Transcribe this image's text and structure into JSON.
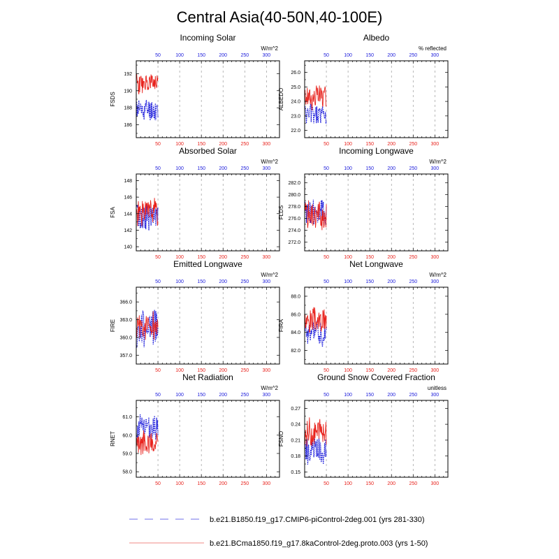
{
  "title": "Central Asia(40-50N,40-100E)",
  "colors": {
    "series1": "#1a1adb",
    "series2": "#e8231d",
    "frame": "#000000",
    "grid": "#9a9a9a",
    "top_ticks": "#1a1adb",
    "bottom_ticks": "#e8231d"
  },
  "legend": {
    "entries": [
      {
        "label": "b.e21.B1850.f19_g17.CMIP6-piControl-2deg.001 (yrs 281-330)",
        "color": "#6f6fe8",
        "style": "dashed"
      },
      {
        "label": "b.e21.BCma1850.f19_g17.8kaControl-2deg.proto.003 (yrs 1-50)",
        "color": "#f08a85",
        "style": "solid"
      }
    ]
  },
  "chart_data": [
    {
      "type": "line",
      "title": "Incoming Solar",
      "ylabel": "FSDS",
      "units": "W/m^2",
      "top_ticks": [
        "50",
        "100",
        "150",
        "200",
        "250",
        "300"
      ],
      "bottom_ticks": [
        "50",
        "100",
        "150",
        "200",
        "250",
        "300"
      ],
      "xlim": [
        0,
        330
      ],
      "ylim": [
        184.5,
        193.5
      ],
      "yticks": [
        186,
        188,
        190,
        192
      ],
      "ytick_labels": [
        "186",
        "188",
        "190",
        "192"
      ],
      "series": [
        {
          "name": "b.e21.B1850.f19_g17.CMIP6-piControl-2deg.001 (yrs 281-330)",
          "center": 187.8,
          "amp": 1.6,
          "seed": 11
        },
        {
          "name": "b.e21.BCma1850.f19_g17.8kaControl-2deg.proto.003 (yrs 1-50)",
          "center": 190.8,
          "amp": 1.4,
          "seed": 23
        }
      ]
    },
    {
      "type": "line",
      "title": "Albedo",
      "ylabel": "ALBEDO",
      "units": "% reflected",
      "top_ticks": [
        "50",
        "100",
        "150",
        "200",
        "250",
        "300"
      ],
      "bottom_ticks": [
        "50",
        "100",
        "150",
        "200",
        "250",
        "300"
      ],
      "xlim": [
        0,
        330
      ],
      "ylim": [
        21.5,
        26.8
      ],
      "yticks": [
        22.0,
        23.0,
        24.0,
        25.0,
        26.0
      ],
      "ytick_labels": [
        "22.0",
        "23.0",
        "24.0",
        "25.0",
        "26.0"
      ],
      "series": [
        {
          "name": "b.e21.B1850.f19_g17.CMIP6-piControl-2deg.001 (yrs 281-330)",
          "center": 23.1,
          "amp": 0.9,
          "seed": 5
        },
        {
          "name": "b.e21.BCma1850.f19_g17.8kaControl-2deg.proto.003 (yrs 1-50)",
          "center": 24.3,
          "amp": 1.0,
          "seed": 17
        }
      ]
    },
    {
      "type": "line",
      "title": "Absorbed Solar",
      "ylabel": "FSA",
      "units": "W/m^2",
      "top_ticks": [
        "50",
        "100",
        "150",
        "200",
        "250",
        "300"
      ],
      "bottom_ticks": [
        "50",
        "100",
        "150",
        "200",
        "250",
        "300"
      ],
      "xlim": [
        0,
        330
      ],
      "ylim": [
        139.5,
        148.8
      ],
      "yticks": [
        140,
        142,
        144,
        146,
        148
      ],
      "ytick_labels": [
        "140",
        "142",
        "144",
        "146",
        "148"
      ],
      "series": [
        {
          "name": "b.e21.B1850.f19_g17.CMIP6-piControl-2deg.001 (yrs 281-330)",
          "center": 143.6,
          "amp": 1.9,
          "seed": 29
        },
        {
          "name": "b.e21.BCma1850.f19_g17.8kaControl-2deg.proto.003 (yrs 1-50)",
          "center": 144.2,
          "amp": 2.0,
          "seed": 31
        }
      ]
    },
    {
      "type": "line",
      "title": "Incoming Longwave",
      "ylabel": "FLDS",
      "units": "W/m^2",
      "top_ticks": [
        "50",
        "100",
        "150",
        "200",
        "250",
        "300"
      ],
      "bottom_ticks": [
        "50",
        "100",
        "150",
        "200",
        "250",
        "300"
      ],
      "xlim": [
        0,
        330
      ],
      "ylim": [
        270.5,
        283.5
      ],
      "yticks": [
        272.0,
        274.0,
        276.0,
        278.0,
        280.0,
        282.0
      ],
      "ytick_labels": [
        "272.0",
        "274.0",
        "276.0",
        "278.0",
        "280.0",
        "282.0"
      ],
      "series": [
        {
          "name": "b.e21.B1850.f19_g17.CMIP6-piControl-2deg.001 (yrs 281-330)",
          "center": 277.0,
          "amp": 3.0,
          "seed": 41
        },
        {
          "name": "b.e21.BCma1850.f19_g17.8kaControl-2deg.proto.003 (yrs 1-50)",
          "center": 276.5,
          "amp": 2.8,
          "seed": 43
        }
      ]
    },
    {
      "type": "line",
      "title": "Emitted Longwave",
      "ylabel": "FIRE",
      "units": "W/m^2",
      "top_ticks": [
        "50",
        "100",
        "150",
        "200",
        "250",
        "300"
      ],
      "bottom_ticks": [
        "50",
        "100",
        "150",
        "200",
        "250",
        "300"
      ],
      "xlim": [
        0,
        330
      ],
      "ylim": [
        355.5,
        368.5
      ],
      "yticks": [
        357.0,
        360.0,
        363.0,
        366.0
      ],
      "ytick_labels": [
        "357.0",
        "360.0",
        "363.0",
        "366.0"
      ],
      "series": [
        {
          "name": "b.e21.B1850.f19_g17.CMIP6-piControl-2deg.001 (yrs 281-330)",
          "center": 361.5,
          "amp": 3.8,
          "seed": 53
        },
        {
          "name": "b.e21.BCma1850.f19_g17.8kaControl-2deg.proto.003 (yrs 1-50)",
          "center": 362.0,
          "amp": 2.8,
          "seed": 59
        }
      ]
    },
    {
      "type": "line",
      "title": "Net Longwave",
      "ylabel": "FIRA",
      "units": "W/m^2",
      "top_ticks": [
        "50",
        "100",
        "150",
        "200",
        "250",
        "300"
      ],
      "bottom_ticks": [
        "50",
        "100",
        "150",
        "200",
        "250",
        "300"
      ],
      "xlim": [
        0,
        330
      ],
      "ylim": [
        80.5,
        89.0
      ],
      "yticks": [
        82.0,
        84.0,
        86.0,
        88.0
      ],
      "ytick_labels": [
        "82.0",
        "84.0",
        "86.0",
        "88.0"
      ],
      "series": [
        {
          "name": "b.e21.B1850.f19_g17.CMIP6-piControl-2deg.001 (yrs 281-330)",
          "center": 83.8,
          "amp": 1.7,
          "seed": 61
        },
        {
          "name": "b.e21.BCma1850.f19_g17.8kaControl-2deg.proto.003 (yrs 1-50)",
          "center": 85.3,
          "amp": 1.8,
          "seed": 67
        }
      ]
    },
    {
      "type": "line",
      "title": "Net Radiation",
      "ylabel": "RNET",
      "units": "W/m^2",
      "top_ticks": [
        "50",
        "100",
        "150",
        "200",
        "250",
        "300"
      ],
      "bottom_ticks": [
        "50",
        "100",
        "150",
        "200",
        "250",
        "300"
      ],
      "xlim": [
        0,
        330
      ],
      "ylim": [
        57.7,
        61.9
      ],
      "yticks": [
        58.0,
        59.0,
        60.0,
        61.0
      ],
      "ytick_labels": [
        "58.0",
        "59.0",
        "60.0",
        "61.0"
      ],
      "series": [
        {
          "name": "b.e21.B1850.f19_g17.CMIP6-piControl-2deg.001 (yrs 281-330)",
          "center": 60.4,
          "amp": 0.9,
          "seed": 71
        },
        {
          "name": "b.e21.BCma1850.f19_g17.8kaControl-2deg.proto.003 (yrs 1-50)",
          "center": 59.5,
          "amp": 0.9,
          "seed": 73
        }
      ]
    },
    {
      "type": "line",
      "title": "Ground Snow Covered Fraction",
      "ylabel": "FSNO",
      "units": "unitless",
      "top_ticks": [
        "50",
        "100",
        "150",
        "200",
        "250",
        "300"
      ],
      "bottom_ticks": [
        "50",
        "100",
        "150",
        "200",
        "250",
        "300"
      ],
      "xlim": [
        0,
        330
      ],
      "ylim": [
        0.14,
        0.285
      ],
      "yticks": [
        0.15,
        0.18,
        0.21,
        0.24,
        0.27
      ],
      "ytick_labels": [
        "0.15",
        "0.18",
        "0.21",
        "0.24",
        "0.27"
      ],
      "series": [
        {
          "name": "b.e21.B1850.f19_g17.CMIP6-piControl-2deg.001 (yrs 281-330)",
          "center": 0.19,
          "amp": 0.03,
          "seed": 79
        },
        {
          "name": "b.e21.BCma1850.f19_g17.8kaControl-2deg.proto.003 (yrs 1-50)",
          "center": 0.225,
          "amp": 0.035,
          "seed": 83
        }
      ]
    }
  ]
}
